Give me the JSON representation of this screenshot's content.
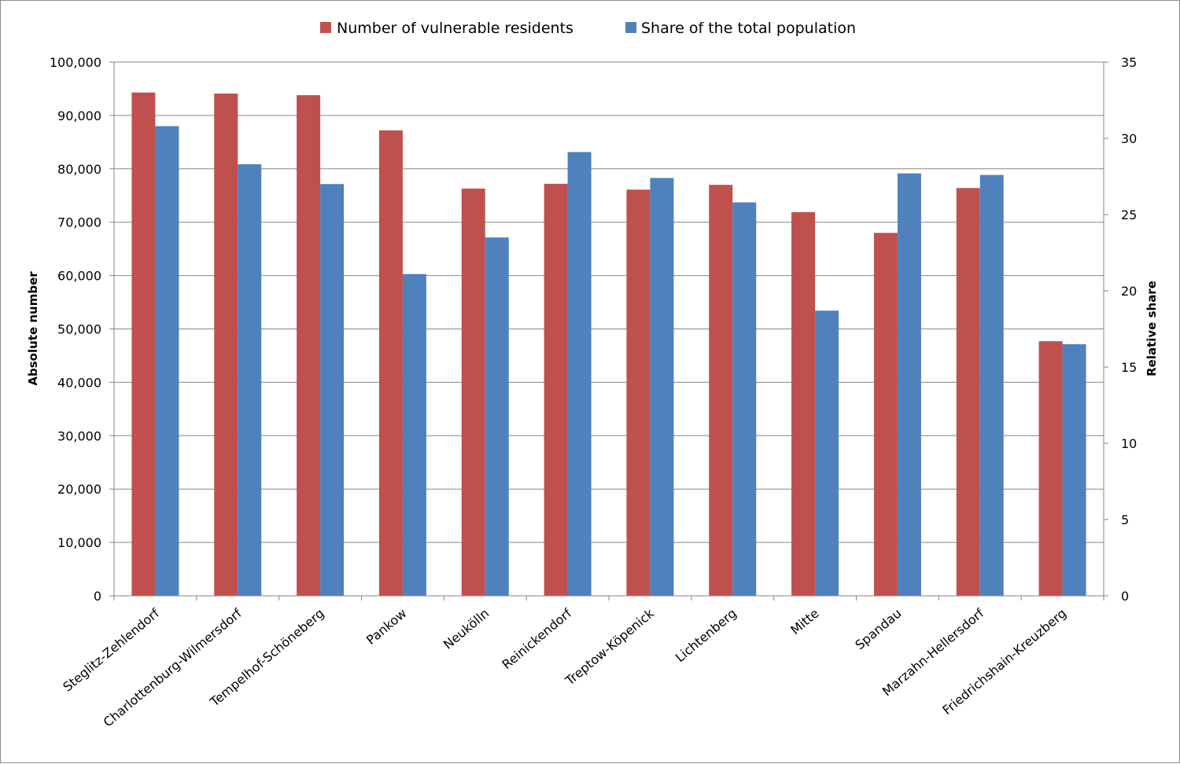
{
  "chart_data": {
    "type": "bar",
    "categories": [
      "Steglitz-Zehlendorf",
      "Charlottenburg-Wilmersdorf",
      "Tempelhof-Schöneberg",
      "Pankow",
      "Neukölln",
      "Reinickendorf",
      "Treptow-Köpenick",
      "Lichtenberg",
      "Mitte",
      "Spandau",
      "Marzahn-Hellersdorf",
      "Friedrichshain-Kreuzberg"
    ],
    "series": [
      {
        "name": "Number of vulnerable residents",
        "axis": "left",
        "color": "#C0504D",
        "values": [
          94300,
          94100,
          93800,
          87200,
          76300,
          77200,
          76100,
          77000,
          71900,
          68000,
          76400,
          47700
        ]
      },
      {
        "name": "Share of the total population",
        "axis": "right",
        "color": "#4F81BD",
        "values": [
          30.8,
          28.3,
          27.0,
          21.1,
          23.5,
          29.1,
          27.4,
          25.8,
          18.7,
          27.7,
          27.6,
          16.5
        ]
      }
    ],
    "ylabel": "Absolute number",
    "ylabel_right": "Relative share",
    "ylim": [
      0,
      100000
    ],
    "ylim_right": [
      0,
      35
    ],
    "yticks": [
      "0",
      "10,000",
      "20,000",
      "30,000",
      "40,000",
      "50,000",
      "60,000",
      "70,000",
      "80,000",
      "90,000",
      "100,000"
    ],
    "yticks_right": [
      "0",
      "5",
      "10",
      "15",
      "20",
      "25",
      "30",
      "35"
    ],
    "grid": true,
    "legend": "top-center"
  }
}
